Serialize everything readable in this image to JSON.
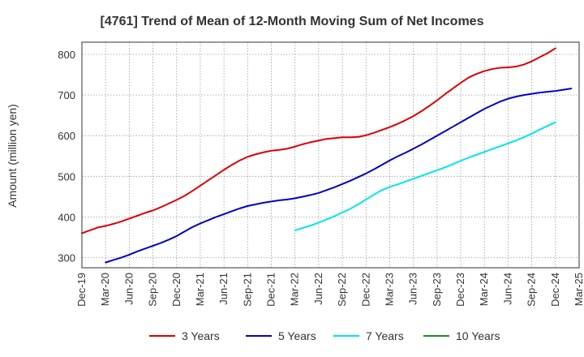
{
  "chart_data": {
    "type": "line",
    "title": "[4761]  Trend of Mean of 12-Month Moving Sum of Net Incomes",
    "xlabel": "",
    "ylabel": "Amount (million yen)",
    "ylim": [
      275,
      830
    ],
    "yticks": [
      300,
      400,
      500,
      600,
      700,
      800
    ],
    "x_ticks": [
      "Dec-19",
      "Mar-20",
      "Jun-20",
      "Sep-20",
      "Dec-20",
      "Mar-21",
      "Jun-21",
      "Sep-21",
      "Dec-21",
      "Mar-22",
      "Jun-22",
      "Sep-22",
      "Dec-22",
      "Mar-23",
      "Jun-23",
      "Sep-23",
      "Dec-23",
      "Mar-24",
      "Jun-24",
      "Sep-24",
      "Dec-24",
      "Mar-25"
    ],
    "x_tick_step_months": 3,
    "grid": true,
    "legend_position": "bottom",
    "series": [
      {
        "name": "3 Years",
        "color": "#dd0000",
        "start_index": 0,
        "values": [
          360,
          367,
          374,
          378,
          383,
          389,
          396,
          403,
          410,
          416,
          424,
          433,
          442,
          452,
          464,
          477,
          490,
          503,
          516,
          528,
          539,
          548,
          554,
          559,
          563,
          565,
          568,
          573,
          579,
          584,
          588,
          592,
          594,
          596,
          596,
          597,
          601,
          607,
          614,
          621,
          629,
          638,
          648,
          660,
          673,
          687,
          702,
          716,
          730,
          743,
          752,
          759,
          764,
          767,
          768,
          770,
          775,
          783,
          793,
          803,
          815
        ]
      },
      {
        "name": "5 Years",
        "color": "#0000cc",
        "start_index": 3,
        "values": [
          288,
          294,
          300,
          307,
          315,
          322,
          329,
          336,
          344,
          353,
          364,
          375,
          384,
          392,
          400,
          407,
          414,
          421,
          427,
          431,
          435,
          438,
          441,
          443,
          446,
          450,
          454,
          459,
          466,
          473,
          481,
          489,
          498,
          507,
          517,
          528,
          539,
          549,
          558,
          568,
          578,
          589,
          600,
          611,
          622,
          633,
          644,
          655,
          666,
          675,
          684,
          691,
          696,
          700,
          703,
          706,
          708,
          710,
          713,
          716
        ]
      },
      {
        "name": "7 Years",
        "color": "#00e5ee",
        "start_index": 27,
        "values": [
          367,
          373,
          379,
          386,
          394,
          402,
          411,
          420,
          431,
          443,
          455,
          466,
          474,
          480,
          487,
          494,
          501,
          508,
          515,
          522,
          530,
          538,
          546,
          553,
          560,
          567,
          574,
          581,
          588,
          596,
          605,
          615,
          624,
          633
        ]
      },
      {
        "name": "10 Years",
        "color": "#228b22",
        "start_index": 0,
        "values": []
      }
    ]
  }
}
